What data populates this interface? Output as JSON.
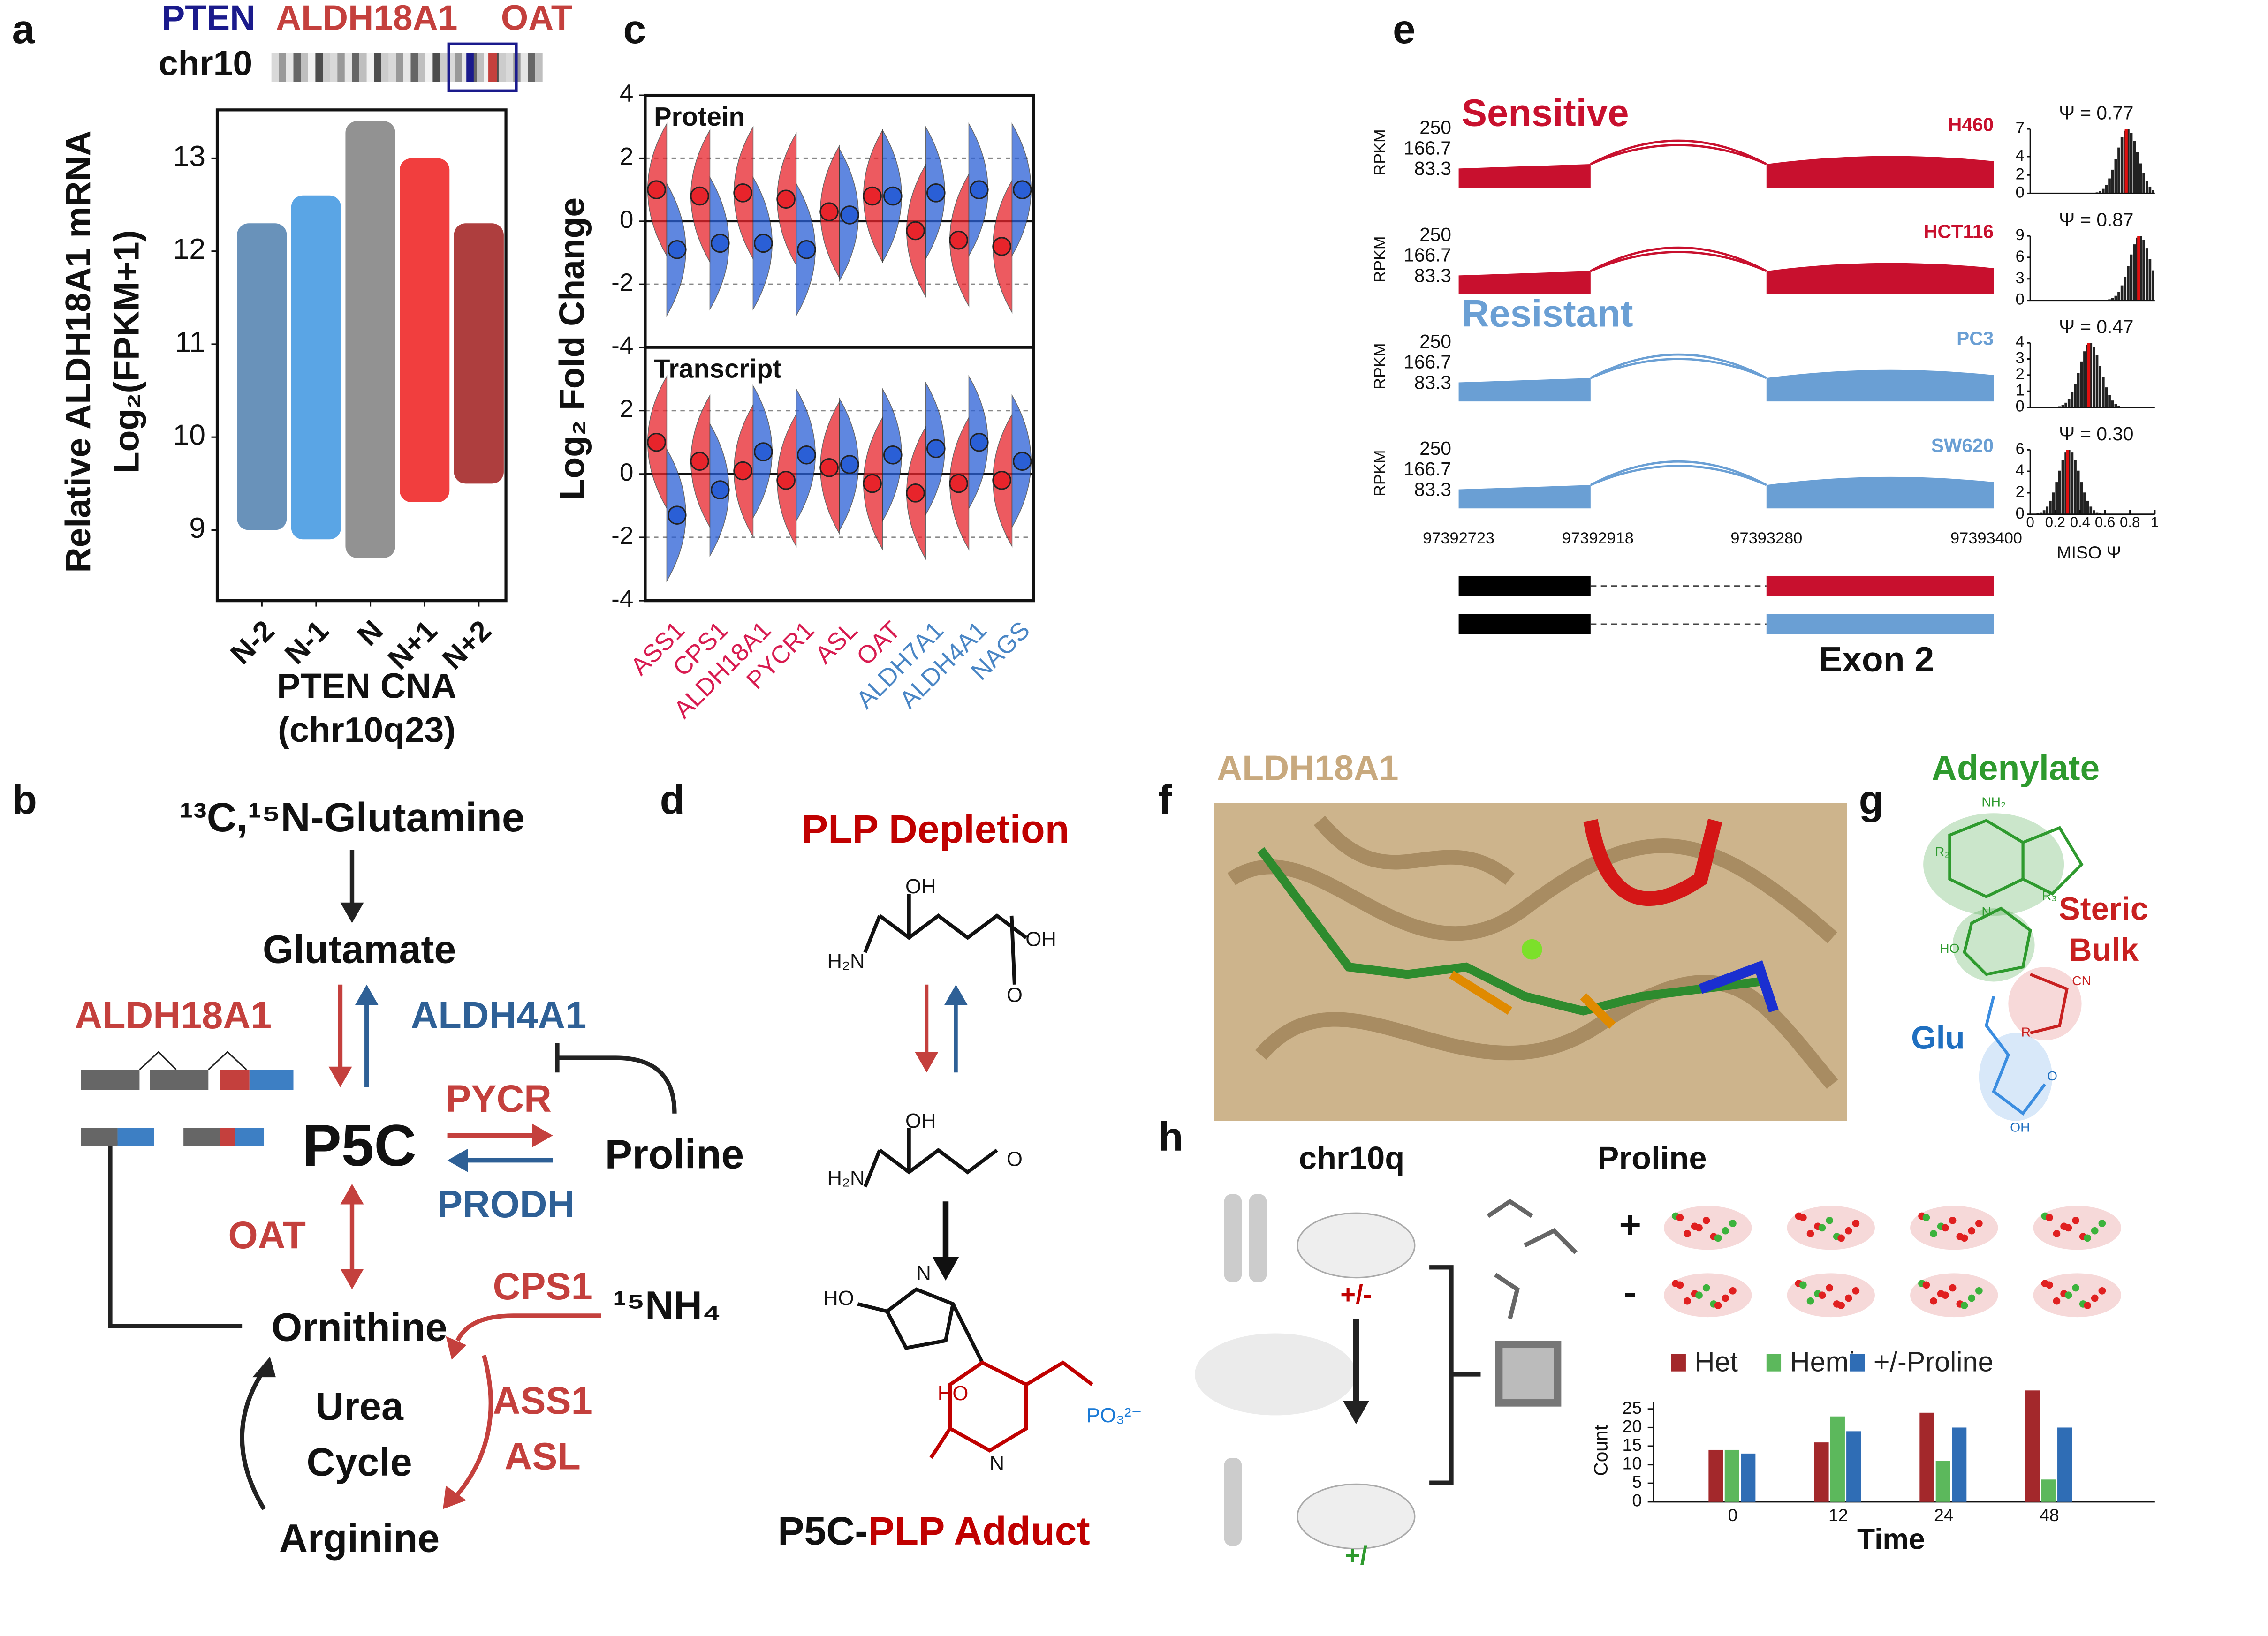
{
  "panel_labels": [
    "a",
    "b",
    "c",
    "d",
    "e",
    "f",
    "g",
    "h"
  ],
  "chart_data": [
    {
      "type": "strip",
      "y_label": [
        "Relative ALDH18A1 mRNA",
        "Log₂(FPKM+1)"
      ],
      "x_label": [
        "PTEN CNA",
        "(chr10q23)"
      ],
      "categories": [
        "N-2",
        "N-1",
        "N",
        "N+1",
        "N+2"
      ],
      "colors": [
        "#4f7fae",
        "#3d95e0",
        "#7f7f7f",
        "#ee1c1c",
        "#a01c1c"
      ],
      "low": [
        9.0,
        8.9,
        8.7,
        9.3,
        9.5
      ],
      "high": [
        12.3,
        12.6,
        13.4,
        13.0,
        12.3
      ],
      "ylim": [
        8.24,
        13.52
      ],
      "yticks": [
        9,
        10,
        11,
        12,
        13
      ]
    },
    {
      "type": "split-violin",
      "label": "Protein",
      "y_label": "Log₂ Fold Change",
      "categories": [
        "ASS1",
        "CPS1",
        "ALDH18A1",
        "PYCR1",
        "ASL",
        "OAT",
        "ALDH7A1",
        "ALDH4A1",
        "NAGS"
      ],
      "category_colors": [
        "#d81b50",
        "#d81b50",
        "#d81b50",
        "#d81b50",
        "#d81b50",
        "#d81b50",
        "#4a86c5",
        "#4a86c5",
        "#4a86c5"
      ],
      "series": [
        {
          "color": "#e8242b",
          "values": [
            1.0,
            0.8,
            0.9,
            0.7,
            0.3,
            0.8,
            -0.3,
            -0.6,
            -0.8
          ]
        },
        {
          "color": "#2a5fd6",
          "values": [
            -0.9,
            -0.7,
            -0.7,
            -0.9,
            0.2,
            0.8,
            0.9,
            1.0,
            1.0
          ]
        }
      ],
      "ylim": [
        -4,
        4
      ],
      "yticks": [
        -4,
        -2,
        0,
        2,
        4
      ],
      "grid": "dashed"
    },
    {
      "type": "split-violin",
      "label": "Transcript",
      "series": [
        {
          "color": "#e8242b",
          "values": [
            1.0,
            0.4,
            0.1,
            -0.2,
            0.2,
            -0.3,
            -0.6,
            -0.3,
            -0.2
          ]
        },
        {
          "color": "#2a5fd6",
          "values": [
            -1.3,
            -0.5,
            0.7,
            0.6,
            0.3,
            0.6,
            0.8,
            1.0,
            0.4
          ]
        }
      ],
      "ylim": [
        -4,
        4
      ],
      "yticks": [
        -4,
        -2,
        0,
        2
      ],
      "grid": "dashed"
    },
    {
      "type": "bar",
      "categories": [
        "0",
        "12",
        "24",
        "48"
      ],
      "x_label": "Time",
      "y_label": "Count",
      "legend": "top",
      "series": [
        {
          "name": "Het",
          "color": "#a3282b",
          "values": [
            14,
            16,
            24,
            30
          ]
        },
        {
          "name": "Hemi",
          "color": "#5cb85c",
          "values": [
            14,
            23,
            11,
            6
          ]
        },
        {
          "name": "+/-Proline",
          "color": "#2f6db5",
          "values": [
            13,
            19,
            20,
            20
          ]
        }
      ],
      "ylim": [
        0,
        30
      ],
      "yticks": [
        0,
        5,
        10,
        15,
        20,
        25
      ]
    }
  ],
  "panel_a": {
    "genes": [
      "PTEN",
      "ALDH18A1",
      "OAT"
    ],
    "chromosome": "chr10"
  },
  "panel_b": {
    "glutamine": "¹³C,¹⁵N-Glutamine",
    "glutamate": "Glutamate",
    "aldh18a1": "ALDH18A1",
    "aldh4a1": "ALDH4A1",
    "p5c": "P5C",
    "pycr": "PYCR",
    "prodh": "PRODH",
    "proline": "Proline",
    "oat": "OAT",
    "cps1": "CPS1",
    "nh4": "¹⁵NH₄",
    "ornithine": "Ornithine",
    "urea": "Urea",
    "cycle": "Cycle",
    "ass1": "ASS1",
    "asl": "ASL",
    "arginine": "Arginine"
  },
  "panel_d": {
    "title": "PLP Depletion",
    "adduct_prefix": "P5C-",
    "adduct": "PLP Adduct",
    "chem_labels": [
      "OH",
      "H₂N",
      "OH",
      "O",
      "OH",
      "H₂N",
      "O",
      "HO",
      "N",
      "HO",
      "N",
      "PO₃²⁻"
    ]
  },
  "panel_e": {
    "sensitive": "Sensitive",
    "resistant": "Resistant",
    "rpkm": "RPKM",
    "rpkm_ticks": [
      250,
      166.7,
      83.3
    ],
    "genomic_ticks": [
      97392723,
      97392918,
      97393280,
      97393400
    ],
    "hist_xticks": [
      0,
      0.2,
      0.4,
      0.6,
      0.8,
      1
    ],
    "hist_x_label": "MISO Ψ",
    "exon": "Exon 2",
    "tracks": [
      {
        "cell": "H460",
        "color": "#c8102e",
        "psi": 0.77,
        "psi_label": "Ψ = 0.77",
        "hist_yticks": [
          0,
          2,
          4,
          7
        ]
      },
      {
        "cell": "HCT116",
        "color": "#c8102e",
        "psi": 0.87,
        "psi_label": "Ψ = 0.87",
        "hist_yticks": [
          0,
          3,
          6,
          9
        ]
      },
      {
        "cell": "PC3",
        "color": "#6a9fd4",
        "psi": 0.47,
        "psi_label": "Ψ = 0.47",
        "hist_yticks": [
          0,
          1,
          2,
          3,
          4
        ]
      },
      {
        "cell": "SW620",
        "color": "#6a9fd4",
        "psi": 0.3,
        "psi_label": "Ψ = 0.30",
        "hist_yticks": [
          0,
          2,
          4,
          6
        ]
      }
    ]
  },
  "panel_f": {
    "title": "ALDH18A1"
  },
  "panel_g": {
    "adenylate": "Adenylate",
    "steric": "Steric",
    "bulk": "Bulk",
    "glu": "Glu",
    "chem_labels": [
      "NH₂",
      "R₂",
      "N",
      "R₃",
      "HO",
      "CN",
      "R",
      "O",
      "OH"
    ]
  },
  "panel_h": {
    "chr": "chr10q",
    "proline": "Proline",
    "plus": "+",
    "minus": "-",
    "het_label": "+/-",
    "hemi_label": "+/"
  }
}
